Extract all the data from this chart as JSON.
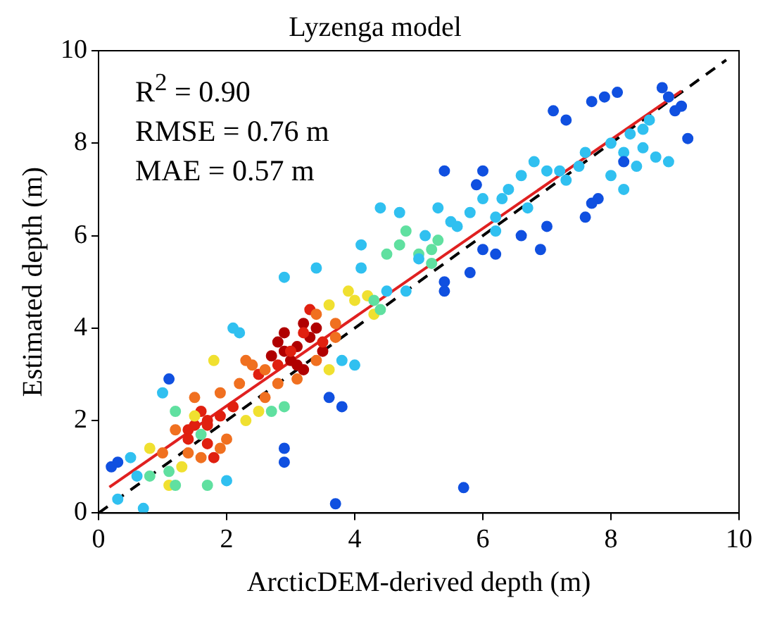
{
  "chart_data": {
    "type": "scatter",
    "title": "Lyzenga model",
    "xlabel": "ArcticDEM-derived depth (m)",
    "ylabel": "Estimated depth (m)",
    "annotations": [
      "R$^{2}$ = 0.90",
      "RMSE = 0.76 m",
      "MAE = 0.57 m"
    ],
    "xlim": [
      0,
      10
    ],
    "ylim": [
      0,
      10
    ],
    "xticks": [
      0,
      2,
      4,
      6,
      8,
      10
    ],
    "yticks": [
      0,
      2,
      4,
      6,
      8,
      10
    ],
    "grid": false,
    "legend": false,
    "marker": "circle",
    "series": [
      {
        "color": "#1050e0",
        "x": [
          8.8,
          8.9,
          9.1,
          9.0,
          9.2,
          8.2,
          7.7,
          7.9,
          8.1,
          7.1,
          7.3,
          7.8,
          7.6,
          7.7,
          6.0,
          6.0,
          5.8,
          6.2,
          6.6,
          6.9,
          7.0,
          5.4,
          5.4,
          5.9,
          3.6,
          3.8,
          2.9,
          2.9,
          3.7,
          5.7,
          0.2,
          0.3,
          1.1,
          5.4
        ],
        "values": [
          9.2,
          9.0,
          8.8,
          8.7,
          8.1,
          7.6,
          8.9,
          9.0,
          9.1,
          8.7,
          8.5,
          6.8,
          6.4,
          6.7,
          7.4,
          5.7,
          5.2,
          5.6,
          6.0,
          5.7,
          6.2,
          5.0,
          4.8,
          7.1,
          2.5,
          2.3,
          1.4,
          1.1,
          0.2,
          0.55,
          1.0,
          1.1,
          2.9,
          7.4
        ]
      },
      {
        "color": "#30c0f0",
        "x": [
          8.3,
          8.5,
          8.6,
          8.0,
          8.2,
          8.4,
          8.7,
          8.9,
          8.5,
          7.6,
          7.5,
          7.2,
          7.0,
          6.8,
          6.6,
          6.4,
          6.3,
          6.2,
          6.7,
          7.3,
          8.0,
          8.2,
          4.7,
          4.4,
          4.1,
          4.1,
          2.9,
          3.4,
          2.1,
          2.2,
          4.0,
          3.8,
          1.0,
          2.0,
          0.3,
          0.5,
          0.6,
          0.7,
          5.5,
          5.8,
          6.0,
          5.1,
          5.6,
          5.3,
          6.2,
          4.5,
          4.8,
          5.0
        ],
        "values": [
          8.2,
          8.3,
          8.5,
          8.0,
          7.8,
          7.5,
          7.7,
          7.6,
          7.9,
          7.8,
          7.5,
          7.4,
          7.4,
          7.6,
          7.3,
          7.0,
          6.8,
          6.4,
          6.6,
          7.2,
          7.3,
          7.0,
          6.5,
          6.6,
          5.8,
          5.3,
          5.1,
          5.3,
          4.0,
          3.9,
          3.2,
          3.3,
          2.6,
          0.7,
          0.3,
          1.2,
          0.8,
          0.1,
          6.3,
          6.5,
          6.8,
          6.0,
          6.2,
          6.6,
          6.1,
          4.8,
          4.8,
          5.5
        ]
      },
      {
        "color": "#60e0a0",
        "x": [
          4.5,
          4.7,
          4.8,
          5.0,
          5.3,
          5.2,
          4.4,
          4.3,
          1.2,
          1.6,
          0.8,
          1.1,
          2.7,
          2.9,
          1.2,
          1.7,
          5.2
        ],
        "values": [
          5.6,
          5.8,
          6.1,
          5.6,
          5.9,
          5.4,
          4.4,
          4.6,
          2.2,
          1.7,
          0.8,
          0.9,
          2.2,
          2.3,
          0.6,
          0.6,
          5.7
        ]
      },
      {
        "color": "#f0e030",
        "x": [
          3.9,
          4.0,
          3.6,
          4.2,
          4.3,
          1.8,
          1.1,
          1.3,
          0.8,
          2.5,
          3.6,
          2.3,
          1.5
        ],
        "values": [
          4.8,
          4.6,
          4.5,
          4.7,
          4.3,
          3.3,
          0.6,
          1.0,
          1.4,
          2.2,
          3.1,
          2.0,
          2.1
        ]
      },
      {
        "color": "#f07020",
        "x": [
          3.7,
          3.7,
          3.4,
          2.4,
          2.3,
          2.6,
          1.2,
          1.5,
          1.9,
          2.2,
          2.0,
          1.9,
          1.4,
          1.0,
          2.8,
          3.1,
          3.4,
          1.6,
          2.6
        ],
        "values": [
          4.1,
          3.8,
          4.3,
          3.2,
          3.3,
          3.1,
          1.8,
          2.5,
          2.6,
          2.8,
          1.6,
          1.4,
          1.3,
          1.3,
          2.8,
          2.9,
          3.3,
          1.2,
          2.5
        ]
      },
      {
        "color": "#e02010",
        "x": [
          1.4,
          1.5,
          1.7,
          1.6,
          1.7,
          1.8,
          1.9,
          2.5,
          2.8,
          3.0,
          3.5,
          3.2,
          1.4,
          1.7,
          2.1,
          3.3
        ],
        "values": [
          1.8,
          1.9,
          2.0,
          2.2,
          1.5,
          1.2,
          2.1,
          3.0,
          3.2,
          3.5,
          3.7,
          3.9,
          1.6,
          1.9,
          2.3,
          4.4
        ]
      },
      {
        "color": "#b00000",
        "x": [
          2.8,
          2.9,
          3.1,
          3.2,
          3.3,
          3.0,
          3.1,
          3.4,
          2.7,
          3.2,
          2.9,
          3.5
        ],
        "values": [
          3.7,
          3.9,
          3.6,
          4.1,
          3.8,
          3.3,
          3.2,
          4.0,
          3.4,
          3.1,
          3.5,
          3.5
        ]
      },
      {
        "type": "line",
        "color": "#e02020",
        "line_style": "solid",
        "marker": "none",
        "x": [
          0.17,
          9.1
        ],
        "values": [
          0.56,
          9.13
        ]
      },
      {
        "type": "line",
        "color": "#000000",
        "line_style": "dashed",
        "marker": "none",
        "x": [
          0,
          9.8
        ],
        "values": [
          0,
          9.8
        ]
      }
    ]
  }
}
